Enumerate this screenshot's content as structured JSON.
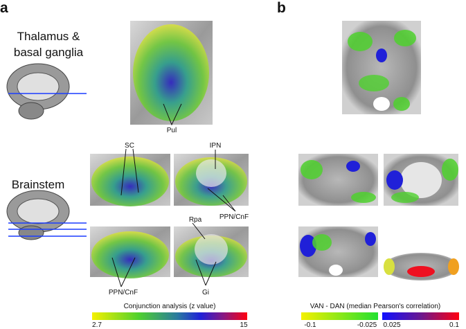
{
  "panel_a": {
    "label": "a",
    "rows": [
      {
        "label_lines": [
          "Thalamus &",
          "basal ganglia"
        ]
      },
      {
        "label_lines": [
          "Brainstem"
        ]
      }
    ],
    "annotations": [
      "Pul",
      "SC",
      "IPN",
      "PPN/CnF",
      "Rpa",
      "PPN/CnF",
      "Gi"
    ],
    "colorbar": {
      "title": "Conjunction analysis (z value)",
      "ticks": [
        "2.7",
        "15"
      ]
    }
  },
  "panel_b": {
    "label": "b",
    "colorbar": {
      "title": "VAN - DAN (median Pearson's correlation)",
      "ticks": [
        "-0.1",
        "-0.025",
        "0.025",
        "0.1"
      ]
    }
  }
}
